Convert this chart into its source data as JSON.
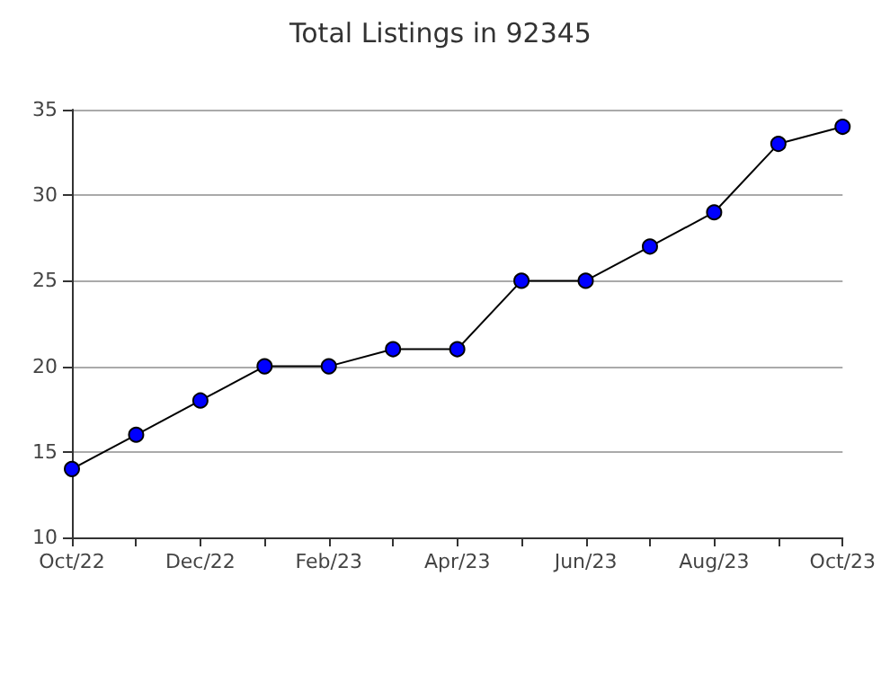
{
  "chart_data": {
    "type": "line",
    "title": "Total Listings in 92345",
    "categories": [
      "Oct/22",
      null,
      "Dec/22",
      null,
      "Feb/23",
      null,
      "Apr/23",
      null,
      "Jun/23",
      null,
      "Aug/23",
      null,
      "Oct/23"
    ],
    "series": [
      {
        "color": "#0000ff",
        "values": [
          14,
          16,
          18,
          20,
          20,
          21,
          21,
          25,
          25,
          27,
          29,
          33,
          34
        ]
      }
    ],
    "ylim": [
      10,
      35
    ],
    "yticks": [
      10,
      15,
      20,
      25,
      30,
      35
    ],
    "grid": "y",
    "marker": "circle",
    "line_style": "solid"
  }
}
